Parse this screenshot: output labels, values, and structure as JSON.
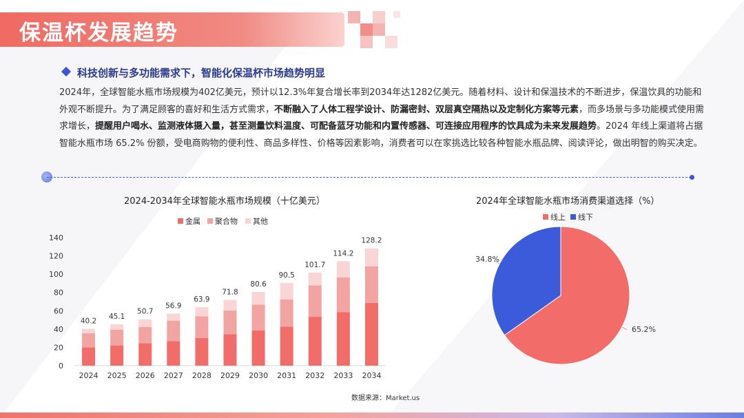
{
  "page": {
    "title": "保温杯发展趋势"
  },
  "section": {
    "heading": "科技创新与多功能需求下，智能化保温杯市场趋势明显",
    "paragraph_parts": [
      {
        "text": "2024年，全球智能水瓶市场规模为402亿美元，预计以12.3%年复合增长率到2034年达1282亿美元。随着材料、设计和保温技术的不断进步，保温饮具的功能和外观不断提升。为了满足顾客的喜好和生活方式需求，",
        "bold": false
      },
      {
        "text": "不断融入了人体工程学设计、防漏密封、双层真空隔热以及定制化方案等元素",
        "bold": true
      },
      {
        "text": "，而多场景与多功能模式使用需求增长，",
        "bold": false
      },
      {
        "text": "提醒用户喝水、监测液体摄入量，甚至测量饮料温度、可配备蓝牙功能和内置传感器、可连接应用程序的饮具成为未来发展趋势",
        "bold": true
      },
      {
        "text": "。2024 年线上渠道将占据智能水瓶市场 65.2% 份额，受电商购物的便利性、商品多样性、价格等因素影响，消费者可以在家挑选比较各种智能水瓶品牌、阅读评论，做出明智的购买决定。",
        "bold": false
      }
    ]
  },
  "source": "数据来源：Market.us",
  "colors": {
    "metal": "#f26d6a",
    "polymer": "#f2a4a2",
    "other": "#f9d5d5",
    "online": "#f26d6a",
    "offline": "#3b5bdb",
    "title_bar": "#ef6a63",
    "accent_blue": "#3d56d6"
  },
  "chart_data": [
    {
      "type": "bar",
      "stacked": true,
      "title": "2024-2034年全球智能水瓶市场规模（十亿美元）",
      "categories": [
        "2024",
        "2025",
        "2026",
        "2027",
        "2028",
        "2029",
        "2030",
        "2031",
        "2032",
        "2033",
        "2034"
      ],
      "series": [
        {
          "name": "金属",
          "values": [
            19.9,
            22.1,
            24.6,
            26.7,
            30.1,
            34.3,
            38.6,
            42.7,
            53.4,
            58.6,
            68.6
          ]
        },
        {
          "name": "聚合物",
          "values": [
            15.6,
            17.3,
            17.6,
            22.5,
            23.9,
            25.9,
            28.2,
            29.7,
            34.4,
            38.0,
            40.0
          ]
        },
        {
          "name": "其他",
          "values": [
            4.7,
            5.7,
            8.5,
            7.7,
            9.9,
            11.6,
            13.8,
            18.1,
            13.9,
            17.6,
            19.6
          ]
        }
      ],
      "totals": [
        40.2,
        45.1,
        50.7,
        56.9,
        63.9,
        71.8,
        80.6,
        90.5,
        101.7,
        114.2,
        128.2
      ],
      "total_labels": [
        "40.2",
        "45.1",
        "50.7",
        "56.9",
        "63.9",
        "71.8",
        "80.6",
        "90.5",
        "101.7",
        "114.2",
        "128.2"
      ],
      "yticks": [
        "0",
        "20",
        "40",
        "60",
        "80",
        "100",
        "120",
        "140"
      ],
      "ylim": [
        0,
        140
      ],
      "legend_position": "top-center",
      "grid": false
    },
    {
      "type": "pie",
      "title": "2024年全球智能水瓶市场消费渠道选择（%）",
      "labels": [
        "线上",
        "线下"
      ],
      "values": [
        65.2,
        34.8
      ],
      "value_labels": [
        "65.2%",
        "34.8%"
      ],
      "legend_position": "top-center"
    }
  ]
}
